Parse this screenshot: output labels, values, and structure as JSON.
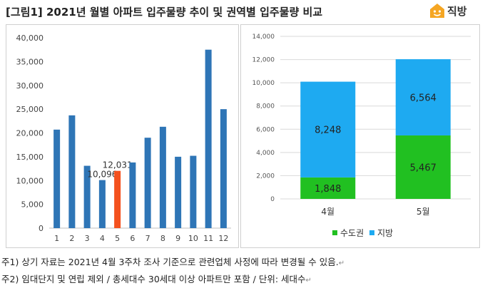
{
  "header": {
    "title": "[그림1] 2021년 월별 아파트 입주물량 추이 및 권역별 입주물량 비교"
  },
  "logo": {
    "text": "직방",
    "icon": "house-smile-icon",
    "color": "#f5a623"
  },
  "chart_data": [
    {
      "type": "bar",
      "categories": [
        "1",
        "2",
        "3",
        "4",
        "5",
        "6",
        "7",
        "8",
        "9",
        "10",
        "11",
        "12"
      ],
      "values": [
        20700,
        23700,
        13100,
        10096,
        12031,
        13800,
        19000,
        21300,
        15000,
        15200,
        37500,
        25000
      ],
      "data_labels": {
        "3": "10,096",
        "4": "12,031"
      },
      "highlight_index": 4,
      "colors": {
        "default": "#2e75b6",
        "highlight": "#f4511e"
      },
      "ylim": [
        0,
        40000
      ],
      "yticks": [
        0,
        5000,
        10000,
        15000,
        20000,
        25000,
        30000,
        35000,
        40000
      ],
      "ytick_labels": [
        "0",
        "5,000",
        "10,000",
        "15,000",
        "20,000",
        "25,000",
        "30,000",
        "35,000",
        "40,000"
      ],
      "grid": false
    },
    {
      "type": "bar",
      "stacked": true,
      "categories": [
        "4월",
        "5월"
      ],
      "series": [
        {
          "name": "수도권",
          "values": [
            1848,
            5467
          ],
          "labels": [
            "1,848",
            "5,467"
          ],
          "color": "#21c021"
        },
        {
          "name": "지방",
          "values": [
            8248,
            6564
          ],
          "labels": [
            "8,248",
            "6,564"
          ],
          "color": "#1eaaf1"
        }
      ],
      "ylim": [
        0,
        14000
      ],
      "yticks": [
        0,
        2000,
        4000,
        6000,
        8000,
        10000,
        12000,
        14000
      ],
      "ytick_labels": [
        "0",
        "2,000",
        "4,000",
        "6,000",
        "8,000",
        "10,000",
        "12,000",
        "14,000"
      ],
      "grid": true,
      "legend_position": "bottom"
    }
  ],
  "notes": [
    {
      "prefix": "주1) ",
      "text": "상기 자료는 2021년 4월 3주차 조사 기준으로 관련업체 사정에 따라 변경될 수 있음.",
      "mark": "↵"
    },
    {
      "prefix": "주2) ",
      "text": "임대단지 및 연립 제외 / 총세대수 30세대 이상 아파트만 포함 / 단위: 세대수",
      "mark": "↵"
    }
  ]
}
